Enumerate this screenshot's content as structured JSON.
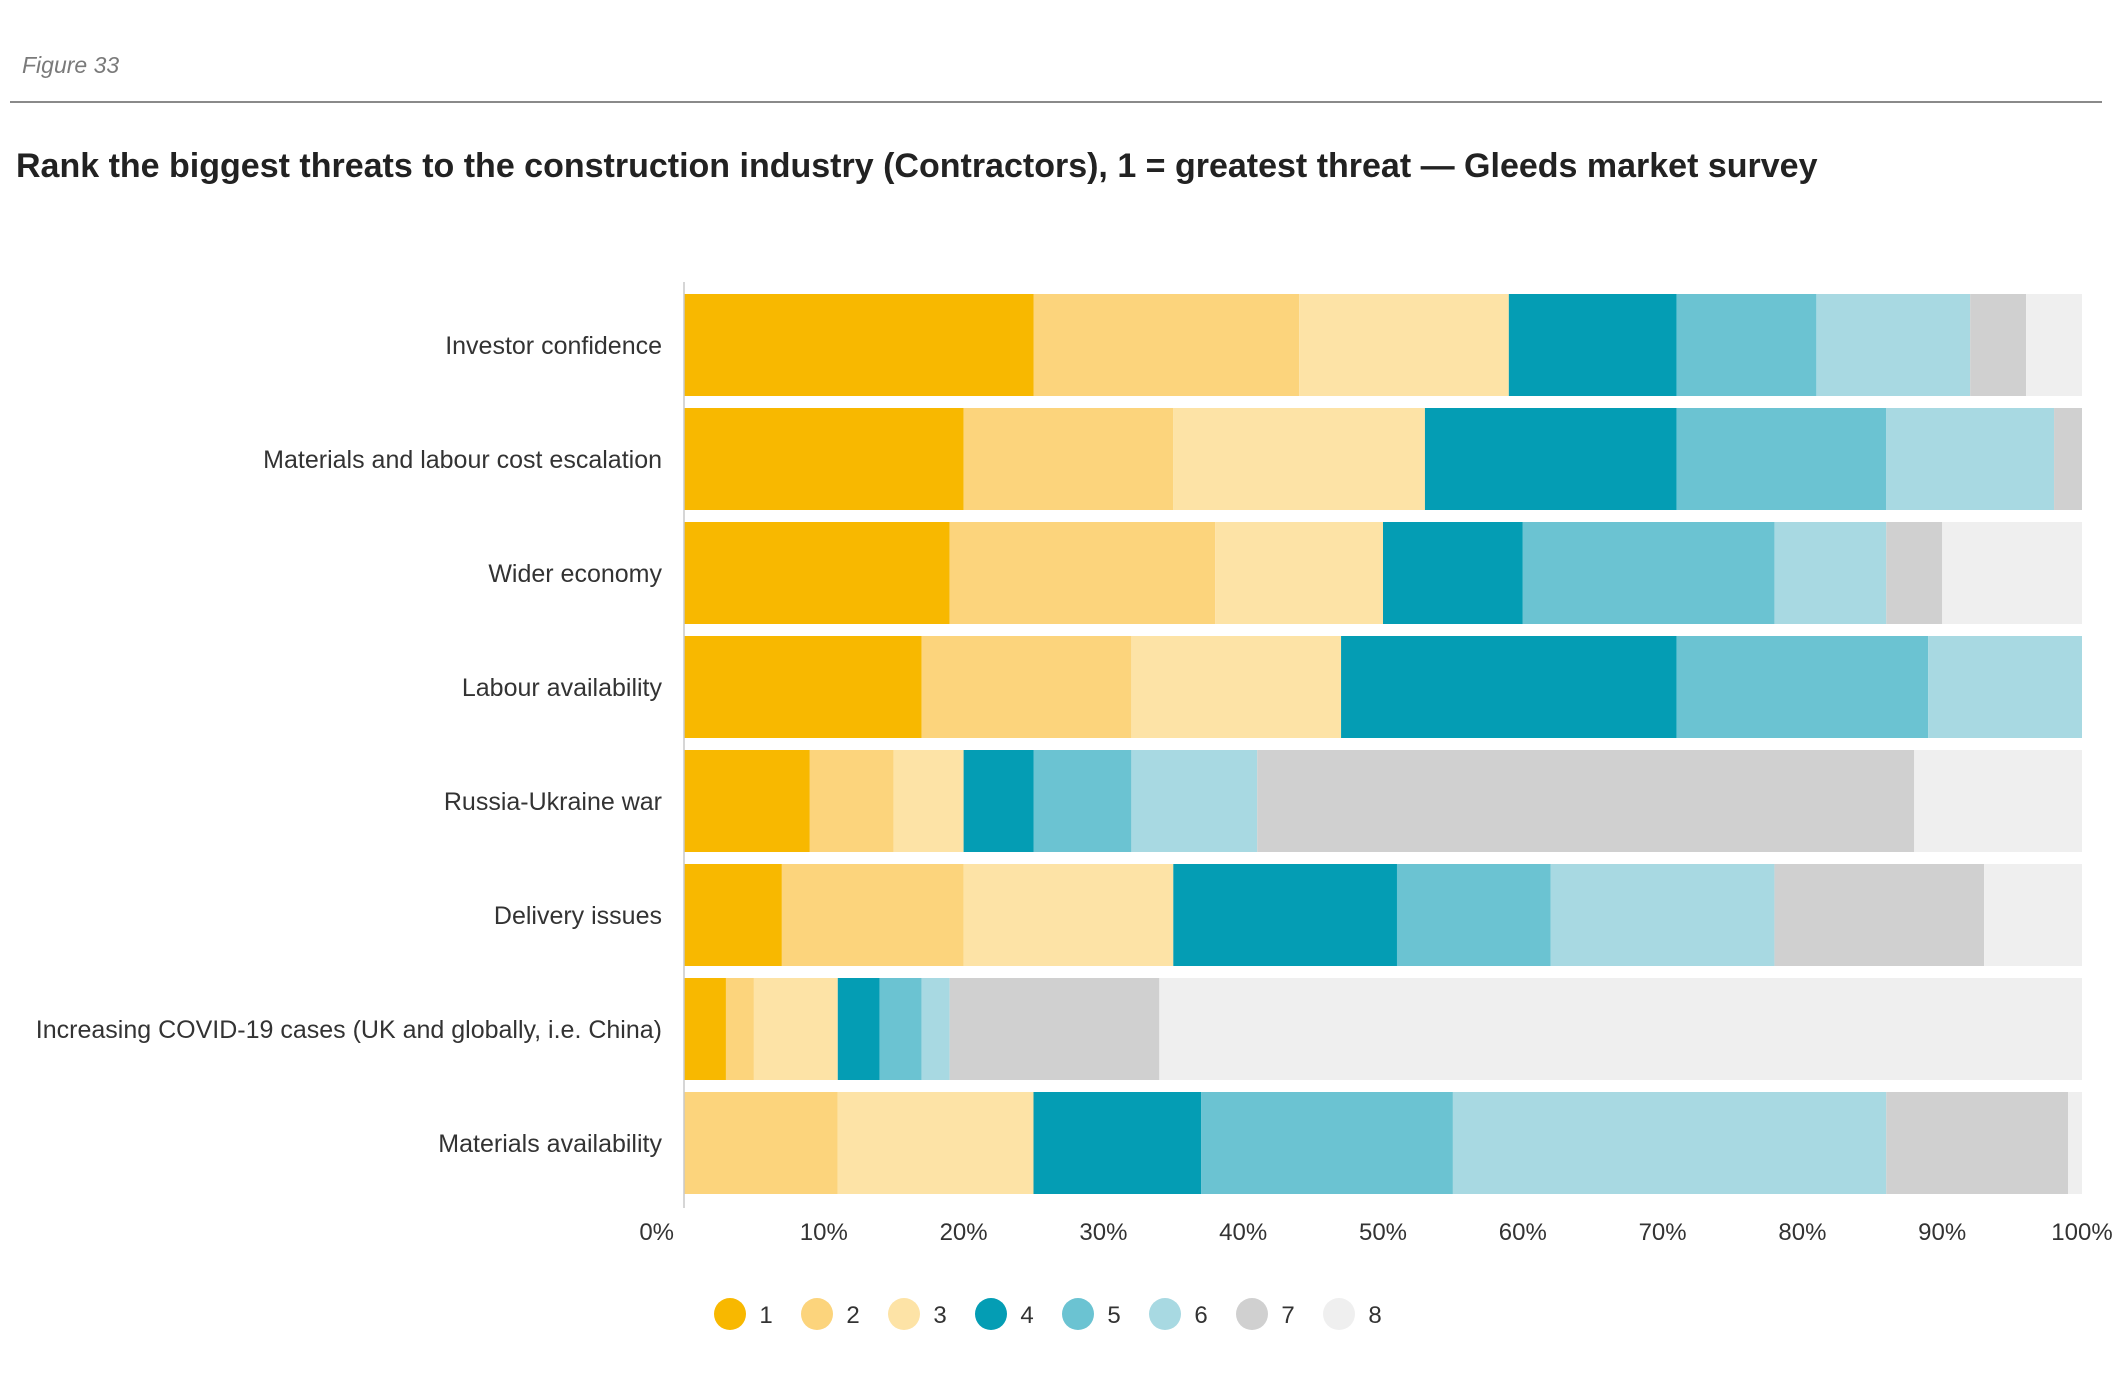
{
  "figure_label": "Figure 33",
  "colors": {
    "1": "#f8b800",
    "2": "#fcd47c",
    "3": "#fde3a6",
    "4": "#049db4",
    "5": "#6bc3d2",
    "6": "#a8d9e2",
    "7": "#d0d0d0",
    "8": "#efefef"
  },
  "chart_data": {
    "type": "bar",
    "orientation": "horizontal",
    "stacked": true,
    "title": "Rank the biggest threats to the construction industry (Contractors), 1 = greatest threat — Gleeds market survey",
    "xlabel": "",
    "ylabel": "",
    "xlim": [
      0,
      100
    ],
    "x_ticks": [
      "0%",
      "10%",
      "20%",
      "30%",
      "40%",
      "50%",
      "60%",
      "70%",
      "80%",
      "90%",
      "100%"
    ],
    "grid": false,
    "legend_position": "bottom",
    "categories": [
      "Investor confidence",
      "Materials and labour cost escalation",
      "Wider economy",
      "Labour availability",
      "Russia-Ukraine war",
      "Delivery issues",
      "Increasing COVID-19 cases (UK and globally, i.e. China)",
      "Materials availability"
    ],
    "series": [
      {
        "name": "1",
        "values": [
          25,
          20,
          19,
          17,
          9,
          7,
          3,
          0
        ]
      },
      {
        "name": "2",
        "values": [
          19,
          15,
          19,
          15,
          6,
          13,
          2,
          11
        ]
      },
      {
        "name": "3",
        "values": [
          15,
          18,
          12,
          15,
          5,
          15,
          6,
          14
        ]
      },
      {
        "name": "4",
        "values": [
          12,
          18,
          10,
          24,
          5,
          16,
          3,
          12
        ]
      },
      {
        "name": "5",
        "values": [
          10,
          15,
          18,
          18,
          7,
          11,
          3,
          18
        ]
      },
      {
        "name": "6",
        "values": [
          11,
          12,
          8,
          11,
          9,
          16,
          2,
          31
        ]
      },
      {
        "name": "7",
        "values": [
          4,
          2,
          4,
          0,
          47,
          15,
          15,
          13
        ]
      },
      {
        "name": "8",
        "values": [
          4,
          0,
          10,
          0,
          12,
          7,
          66,
          1
        ]
      }
    ]
  }
}
